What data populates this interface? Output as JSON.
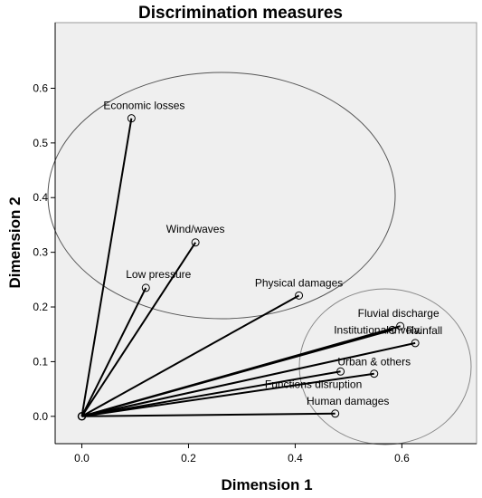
{
  "chart_data": {
    "type": "scatter",
    "title": "Discrimination measures",
    "xlabel": "Dimension 1",
    "ylabel": "Dimension 2",
    "xlim": [
      -0.05,
      0.74
    ],
    "ylim": [
      -0.05,
      0.72
    ],
    "xticks": [
      "0.0",
      "0.2",
      "0.4",
      "0.6"
    ],
    "yticks": [
      "0.0",
      "0.1",
      "0.2",
      "0.3",
      "0.4",
      "0.5",
      "0.6"
    ],
    "grid": false,
    "vectors_from_origin": true,
    "points": [
      {
        "label": "Economic losses",
        "x": 0.093,
        "y": 0.545
      },
      {
        "label": "Wind/waves",
        "x": 0.213,
        "y": 0.318
      },
      {
        "label": "Low pressure",
        "x": 0.12,
        "y": 0.235
      },
      {
        "label": "Physical damages",
        "x": 0.407,
        "y": 0.221
      },
      {
        "label": "Fluvial discharge",
        "x": 0.597,
        "y": 0.165
      },
      {
        "label": "Rainfall",
        "x": 0.625,
        "y": 0.134
      },
      {
        "label": "Institutional involv.",
        "x": 0.582,
        "y": 0.158
      },
      {
        "label": "Urban & others",
        "x": 0.548,
        "y": 0.078
      },
      {
        "label": "Functions disruption",
        "x": 0.485,
        "y": 0.082
      },
      {
        "label": "Human damages",
        "x": 0.475,
        "y": 0.005
      }
    ],
    "colors": {
      "background": "#efefef",
      "line": "#000000"
    }
  }
}
